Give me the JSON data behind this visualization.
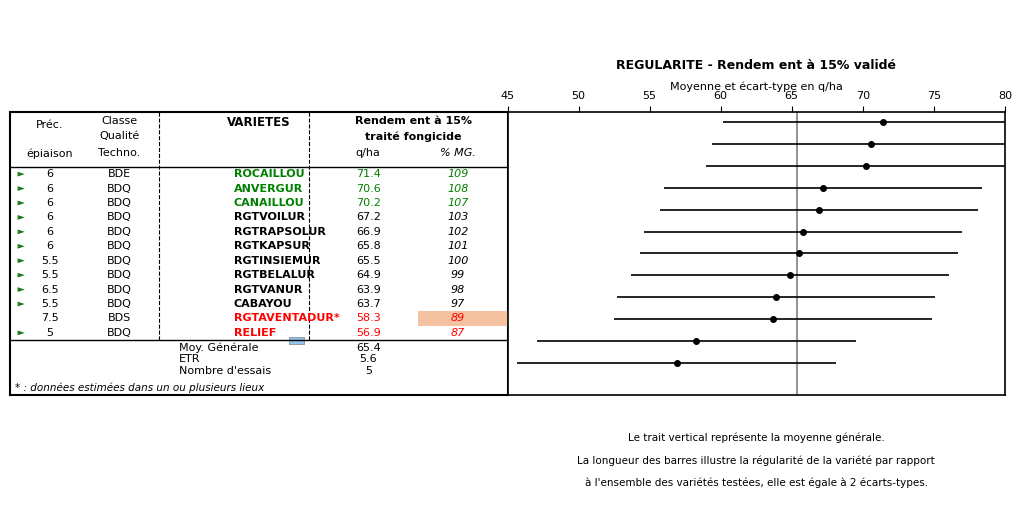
{
  "varieties": [
    "ROCAILLOU",
    "ANVERGUR",
    "CANAILLOU",
    "RGTVOILUR",
    "RGTRAPSOLUR",
    "RGTKAPSUR",
    "RGTINSIEMUR",
    "RGTBELALUR",
    "RGTVANUR",
    "CABAYOU",
    "RGTAVENTADUR*",
    "RELIEF"
  ],
  "prec_epiaison": [
    6,
    6,
    6,
    6,
    6,
    6,
    5.5,
    5.5,
    6.5,
    5.5,
    7.5,
    5
  ],
  "classe_qualite": [
    "BDE",
    "BDQ",
    "BDQ",
    "BDQ",
    "BDQ",
    "BDQ",
    "BDQ",
    "BDQ",
    "BDQ",
    "BDQ",
    "BDS",
    "BDQ"
  ],
  "qha": [
    71.4,
    70.6,
    70.2,
    67.2,
    66.9,
    65.8,
    65.5,
    64.9,
    63.9,
    63.7,
    58.3,
    56.9
  ],
  "pct_mg": [
    109,
    108,
    107,
    103,
    102,
    101,
    100,
    99,
    98,
    97,
    89,
    87
  ],
  "variety_colors": [
    "#008000",
    "#008000",
    "#008000",
    "#000000",
    "#000000",
    "#000000",
    "#000000",
    "#000000",
    "#000000",
    "#000000",
    "#FF0000",
    "#FF0000"
  ],
  "pct_highlight_row": 10,
  "pct_highlight_color": "#F4C2A1",
  "etr": 5.6,
  "mean_general": 65.4,
  "n_essais": 5,
  "xmin": 45,
  "xmax": 80,
  "xticks": [
    45,
    50,
    55,
    60,
    65,
    70,
    75,
    80
  ],
  "right_title1": "REGULARITE - Rendem ent à 15% validé",
  "right_subtitle": "Moyenne et écart-type en q/ha",
  "left_header1": "Classe",
  "left_header2": "Qualité",
  "left_header3": "Techno.",
  "col_prec_label": "Préc.",
  "col_epiaison_label": "épiaison",
  "col_varietes_label": "VARIETES",
  "col_qha_label": "q/ha",
  "col_pct_label": "% MG.",
  "rendement_header1": "Rendem ent à 15%",
  "rendement_header2": "traité fongicide",
  "moy_generale_label": "Moy. Générale",
  "etr_label": "ETR",
  "nb_essais_label": "Nombre d'essais",
  "footnote": "* : données estimées dans un ou plusieurs lieux",
  "right_note1": "Le trait vertical représente la moyenne générale.",
  "right_note2": "La longueur des barres illustre la régularité de la variété par rapport",
  "right_note3": "à l'ensemble des variétés testées, elle est égale à 2 écarts-types.",
  "arrow_varieties": [
    0,
    1,
    2,
    3,
    4,
    5,
    6,
    7,
    8,
    9,
    11
  ],
  "arrow_color": "#1a7a1a"
}
